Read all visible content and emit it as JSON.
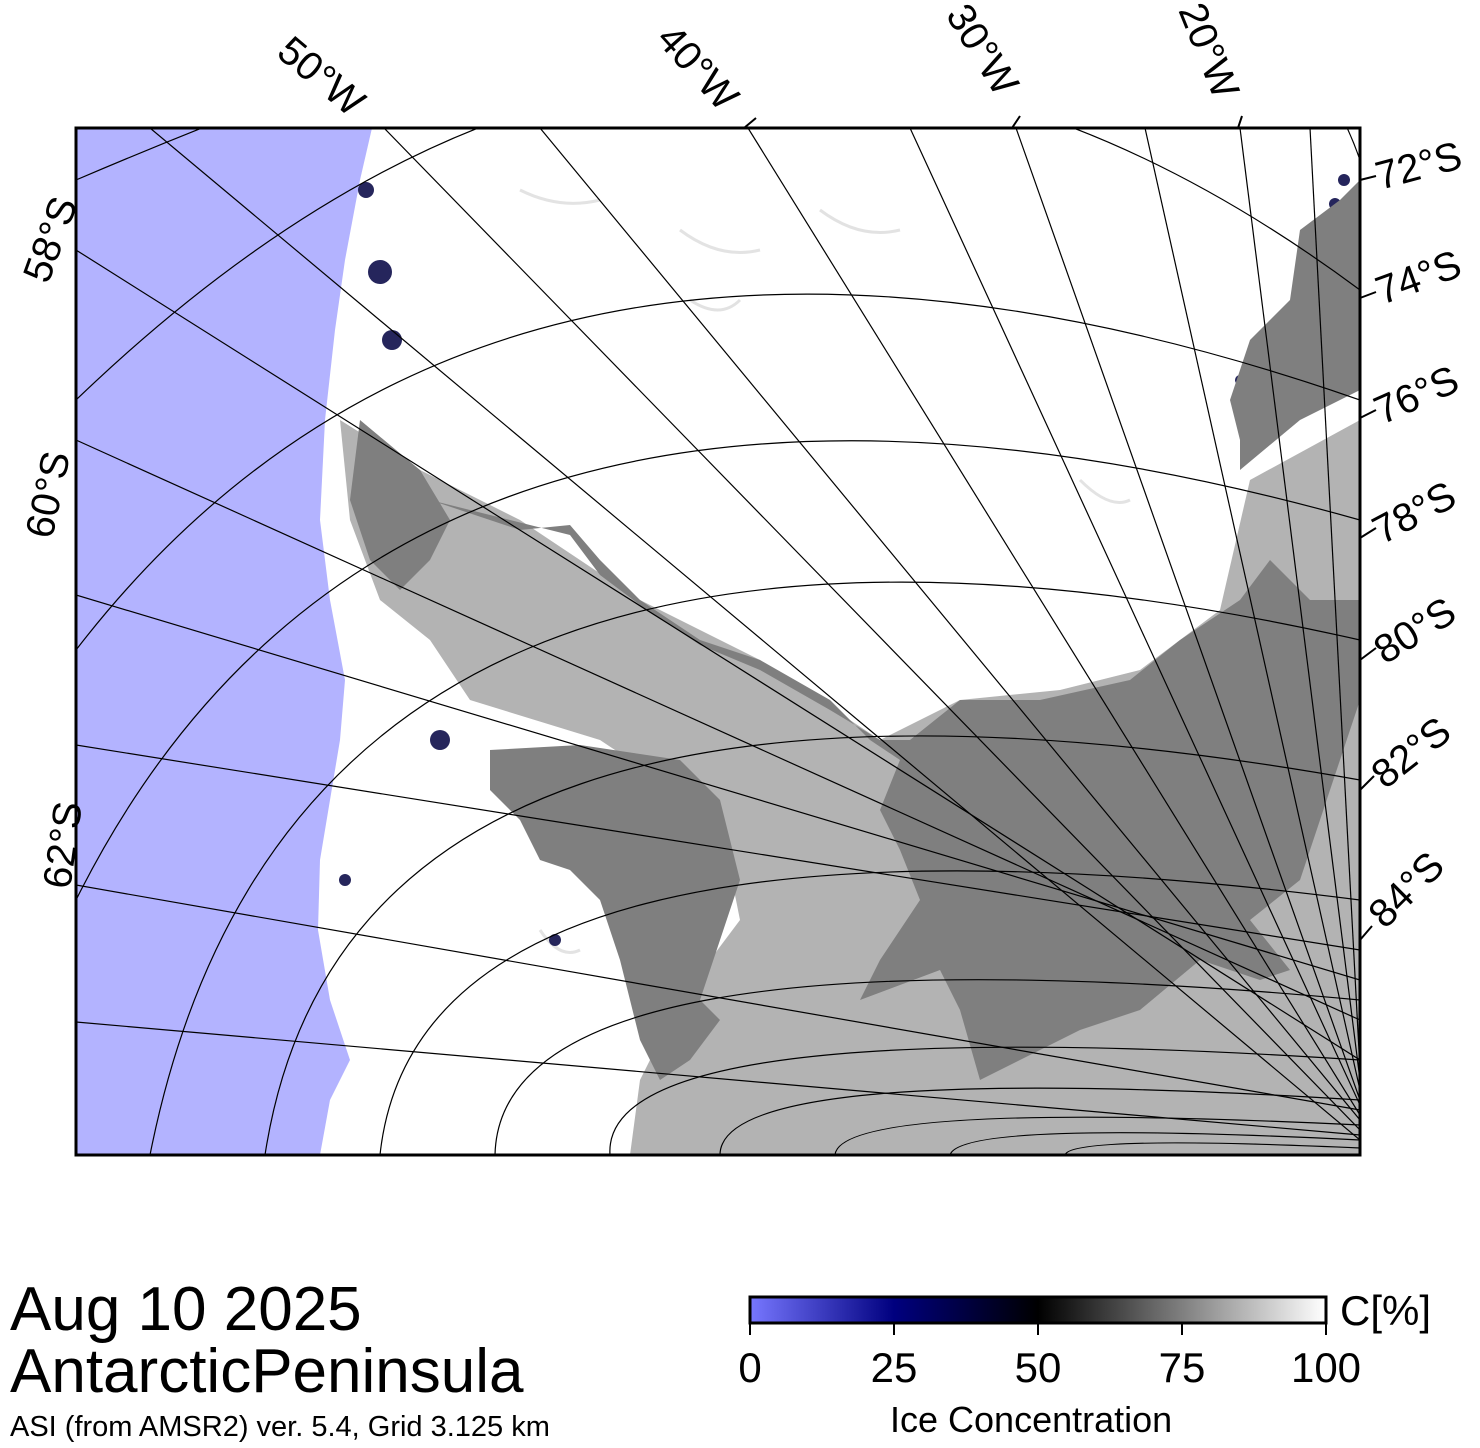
{
  "map": {
    "title_date": "Aug 10 2025",
    "region": "AntarcticPeninsula",
    "product": "ASI (from AMSR2) ver. 5.4,  Grid 3.125 km",
    "colors": {
      "ocean_open": "#b3b3ff",
      "ice_full": "#ffffff",
      "land": "#7f7f7f",
      "ice_shelf": "#b3b3b3",
      "frame": "#000000"
    },
    "longitude_labels": [
      "50°W",
      "40°W",
      "30°W",
      "20°W"
    ],
    "latitude_labels_left": [
      "58°S",
      "60°S",
      "62°S"
    ],
    "latitude_labels_right": [
      "72°S",
      "74°S",
      "76°S",
      "78°S",
      "80°S",
      "82°S",
      "84°S"
    ]
  },
  "colorbar": {
    "title": "Ice Concentration",
    "unit": "C[%]",
    "ticks": [
      "0",
      "25",
      "50",
      "75",
      "100"
    ],
    "range": [
      0,
      100
    ],
    "colors": [
      "#7777ff",
      "#00007f",
      "#000000",
      "#7f7f7f",
      "#ffffff"
    ]
  }
}
